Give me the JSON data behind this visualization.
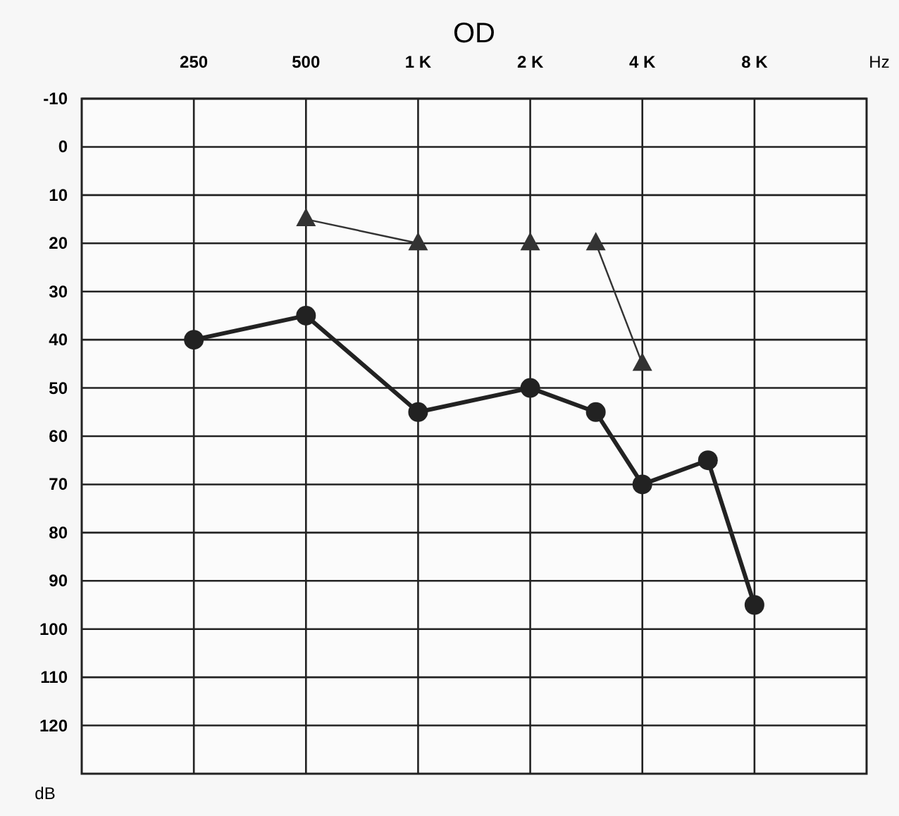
{
  "chart_data": {
    "type": "line",
    "title": "OD",
    "xlabel": "Hz",
    "ylabel": "dB",
    "log": "x",
    "xlim": [
      125,
      16000
    ],
    "xticks": [
      250,
      500,
      {
        "value": 1000,
        "label": "1 K"
      },
      {
        "value": 2000,
        "label": "2 K"
      },
      {
        "value": 4000,
        "label": "4 K"
      },
      {
        "value": 8000,
        "label": "8 K"
      }
    ],
    "ylim": [
      130,
      -10
    ],
    "yticks": [
      -10,
      0,
      10,
      20,
      30,
      40,
      50,
      60,
      70,
      80,
      90,
      100,
      110,
      120
    ],
    "grid": true,
    "series": [
      {
        "color": "#222222",
        "marker": "circle",
        "x": [
          250,
          500,
          1000,
          2000,
          3000,
          4000,
          6000,
          8000
        ],
        "values": [
          40,
          35,
          55,
          50,
          55,
          70,
          65,
          95
        ]
      },
      {
        "color": "#333333",
        "marker": "triangle",
        "x": [
          500,
          1000
        ],
        "values": [
          15,
          20
        ]
      },
      {
        "color": "#333333",
        "marker": "triangle",
        "x": [
          2000
        ],
        "values": [
          20
        ]
      },
      {
        "color": "#333333",
        "marker": "triangle",
        "x": [
          3000,
          4000
        ],
        "values": [
          20,
          45
        ]
      }
    ]
  }
}
